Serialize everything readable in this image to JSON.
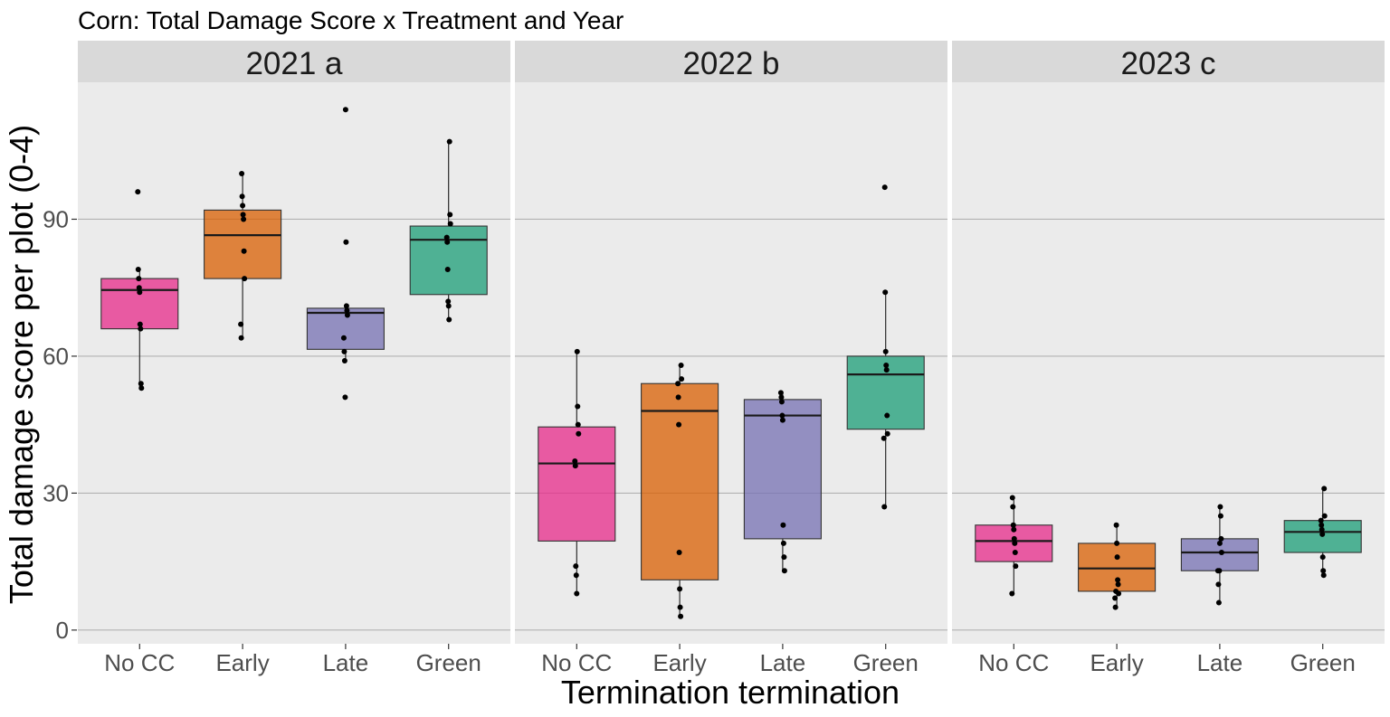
{
  "chart_data": {
    "type": "box",
    "title": "Corn: Total Damage Score x Treatment and Year",
    "xlabel": "Termination termination",
    "ylabel": "Total damage score per plot (0-4)",
    "ylim": [
      -3,
      120
    ],
    "yticks": [
      0,
      30,
      60,
      90
    ],
    "grid": true,
    "legend": "none",
    "categories": [
      "No CC",
      "Early",
      "Late",
      "Green"
    ],
    "colors": {
      "No CC": "#E7298A",
      "Early": "#D95F02",
      "Late": "#7570B3",
      "Green": "#1B9E77",
      "panel_bg": "#EBEBEB",
      "strip_bg": "#D9D9D9",
      "gridline": "#B3B3B3"
    },
    "panels": [
      {
        "label": "2021  a",
        "boxes": [
          {
            "category": "No CC",
            "lower": 53,
            "q1": 66,
            "median": 74.5,
            "q3": 77,
            "upper": 79,
            "outliers": [
              96
            ],
            "points": [
              96,
              79,
              77,
              75,
              74,
              67,
              66,
              54,
              53
            ]
          },
          {
            "category": "Early",
            "lower": 64,
            "q1": 77,
            "median": 86.5,
            "q3": 92,
            "upper": 100,
            "outliers": [],
            "points": [
              100,
              95,
              93,
              91,
              90,
              83,
              77,
              67,
              64
            ]
          },
          {
            "category": "Late",
            "lower": 59,
            "q1": 61.5,
            "median": 69.5,
            "q3": 70.5,
            "upper": 71,
            "outliers": [
              114,
              85,
              51
            ],
            "points": [
              114,
              85,
              71,
              70,
              69,
              64,
              61,
              59,
              51
            ]
          },
          {
            "category": "Green",
            "lower": 68,
            "q1": 73.5,
            "median": 85.5,
            "q3": 88.5,
            "upper": 107,
            "outliers": [],
            "points": [
              107,
              91,
              89,
              86,
              85,
              79,
              72,
              71,
              68
            ]
          }
        ]
      },
      {
        "label": "2022  b",
        "boxes": [
          {
            "category": "No CC",
            "lower": 8,
            "q1": 19.5,
            "median": 36.5,
            "q3": 44.5,
            "upper": 61,
            "outliers": [],
            "points": [
              61,
              49,
              45,
              43,
              37,
              36,
              14,
              12,
              8
            ]
          },
          {
            "category": "Early",
            "lower": 3,
            "q1": 11,
            "median": 48,
            "q3": 54,
            "upper": 58,
            "outliers": [],
            "points": [
              58,
              55,
              54,
              51,
              45,
              17,
              9,
              5,
              3
            ]
          },
          {
            "category": "Late",
            "lower": 13,
            "q1": 20,
            "median": 47,
            "q3": 50.5,
            "upper": 52,
            "outliers": [],
            "points": [
              52,
              51,
              50,
              47,
              46,
              23,
              19,
              16,
              13
            ]
          },
          {
            "category": "Green",
            "lower": 27,
            "q1": 44,
            "median": 56,
            "q3": 60,
            "upper": 74,
            "outliers": [
              97
            ],
            "points": [
              97,
              74,
              61,
              58,
              57,
              47,
              43,
              42,
              27
            ]
          }
        ]
      },
      {
        "label": "2023  c",
        "boxes": [
          {
            "category": "No CC",
            "lower": 8,
            "q1": 15,
            "median": 19.5,
            "q3": 23,
            "upper": 29,
            "outliers": [],
            "points": [
              29,
              27,
              23,
              22,
              20,
              19,
              17,
              14,
              8
            ]
          },
          {
            "category": "Early",
            "lower": 5,
            "q1": 8.5,
            "median": 13.5,
            "q3": 19,
            "upper": 23,
            "outliers": [],
            "points": [
              23,
              19,
              16,
              11,
              10,
              8,
              7,
              5,
              8.5
            ]
          },
          {
            "category": "Late",
            "lower": 6,
            "q1": 13,
            "median": 17,
            "q3": 20,
            "upper": 27,
            "outliers": [],
            "points": [
              27,
              25,
              20,
              17,
              13,
              10,
              6,
              13,
              19
            ]
          },
          {
            "category": "Green",
            "lower": 12,
            "q1": 17,
            "median": 21.5,
            "q3": 24,
            "upper": 31,
            "outliers": [],
            "points": [
              31,
              25,
              24,
              23,
              22,
              21,
              16,
              13,
              12
            ]
          }
        ]
      }
    ]
  }
}
